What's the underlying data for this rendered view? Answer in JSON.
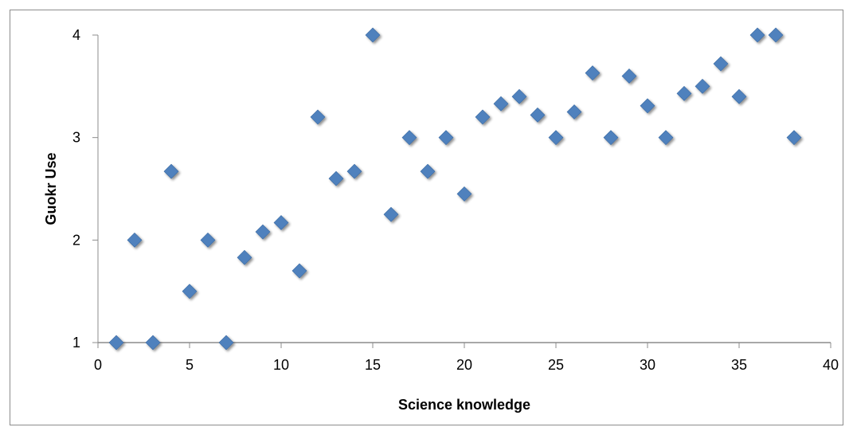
{
  "chart_data": {
    "type": "scatter",
    "title": "",
    "xlabel": "Science knowledge",
    "ylabel": "Guokr Use",
    "xlim": [
      0,
      40
    ],
    "ylim": [
      1,
      4
    ],
    "xticks": [
      "0",
      "5",
      "10",
      "15",
      "20",
      "25",
      "30",
      "35",
      "40"
    ],
    "yticks": [
      "1",
      "2",
      "3",
      "4"
    ],
    "grid": "horizontal",
    "legend": "none",
    "marker": "diamond",
    "marker_color": "#4F81BD",
    "gridline_color": "#000000",
    "points": [
      {
        "x": 1,
        "y": 1.0
      },
      {
        "x": 2,
        "y": 2.0
      },
      {
        "x": 3,
        "y": 1.0
      },
      {
        "x": 4,
        "y": 2.67
      },
      {
        "x": 5,
        "y": 1.5
      },
      {
        "x": 6,
        "y": 2.0
      },
      {
        "x": 7,
        "y": 1.0
      },
      {
        "x": 8,
        "y": 1.83
      },
      {
        "x": 9,
        "y": 2.08
      },
      {
        "x": 10,
        "y": 2.17
      },
      {
        "x": 11,
        "y": 1.7
      },
      {
        "x": 12,
        "y": 3.2
      },
      {
        "x": 13,
        "y": 2.6
      },
      {
        "x": 14,
        "y": 2.67
      },
      {
        "x": 15,
        "y": 4.0
      },
      {
        "x": 16,
        "y": 2.25
      },
      {
        "x": 17,
        "y": 3.0
      },
      {
        "x": 18,
        "y": 2.67
      },
      {
        "x": 19,
        "y": 3.0
      },
      {
        "x": 20,
        "y": 2.45
      },
      {
        "x": 21,
        "y": 3.2
      },
      {
        "x": 22,
        "y": 3.33
      },
      {
        "x": 23,
        "y": 3.4
      },
      {
        "x": 24,
        "y": 3.22
      },
      {
        "x": 25,
        "y": 3.0
      },
      {
        "x": 26,
        "y": 3.25
      },
      {
        "x": 27,
        "y": 3.63
      },
      {
        "x": 28,
        "y": 3.0
      },
      {
        "x": 29,
        "y": 3.6
      },
      {
        "x": 30,
        "y": 3.31
      },
      {
        "x": 31,
        "y": 3.0
      },
      {
        "x": 32,
        "y": 3.43
      },
      {
        "x": 33,
        "y": 3.5
      },
      {
        "x": 34,
        "y": 3.72
      },
      {
        "x": 35,
        "y": 3.4
      },
      {
        "x": 36,
        "y": 4.0
      },
      {
        "x": 37,
        "y": 4.0
      },
      {
        "x": 38,
        "y": 3.0
      }
    ]
  }
}
